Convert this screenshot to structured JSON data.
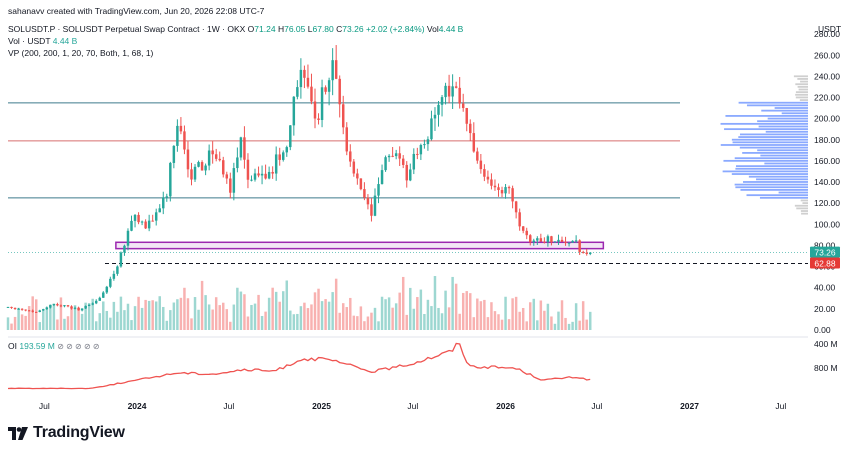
{
  "header": {
    "created_by": "sahanavv created with TradingView.com, Jun 20, 2026 22:08 UTC-7"
  },
  "legend": {
    "symbol": "SOLUSDT.P · SOLUSDT Perpetual Swap Contract · 1W · OKX",
    "open_label": "O",
    "open": "71.24",
    "high_label": "H",
    "high": "76.05",
    "low_label": "L",
    "low": "67.80",
    "close_label": "C",
    "close": "73.26",
    "change": "+2.02 (+2.84%)",
    "vol_label": "Vol",
    "vol": "4.44 B",
    "volume_label": "Vol · USDT",
    "volume_value": "4.44 B",
    "vp_label": "VP (200, 200, 1, 20, 70, Both, 1, 68, 1)",
    "oi_label": "OI",
    "oi_value": "193.59 M",
    "oi_icons": "⊘ ⊘ ⊘ ⊘ ⊘"
  },
  "price_axis": {
    "currency": "USDT",
    "current_price": "73.26",
    "support_price": "62.88",
    "colors": {
      "current": "#26a69a",
      "support": "#e53935"
    }
  },
  "oi_axis": {
    "labels": [
      "800 M",
      "400 M"
    ]
  },
  "brand": {
    "name": "TradingView",
    "icon": "tradingview-logo-icon"
  },
  "chart_data": {
    "type": "candlestick",
    "symbol": "SOLUSDT.P",
    "interval": "1W",
    "ylim": [
      0,
      300
    ],
    "y_ticks": [
      0,
      20,
      40,
      60,
      80,
      100,
      120,
      140,
      160,
      180,
      200,
      220,
      240,
      260,
      280
    ],
    "y_tick_labels": [
      "0.00",
      "20.00",
      "40.00",
      "60.00",
      "80.00",
      "100.00",
      "120.00",
      "140.00",
      "160.00",
      "180.00",
      "200.00",
      "220.00",
      "240.00",
      "260.00",
      "280.00"
    ],
    "x_ticks": [
      "Jul",
      "2024",
      "Jul",
      "2025",
      "Jul",
      "2026",
      "Jul",
      "2027",
      "Jul"
    ],
    "x_tick_dates": [
      "2023-07-01",
      "2024-01-01",
      "2024-07-01",
      "2025-01-01",
      "2025-07-01",
      "2026-01-01",
      "2026-07-01",
      "2027-01-01",
      "2027-07-01"
    ],
    "x_range": [
      "2023-04-20",
      "2027-08-20"
    ],
    "horizontal_levels": [
      {
        "price": 215,
        "color": "#3d7a8c"
      },
      {
        "price": 179,
        "color": "#d86f6f"
      },
      {
        "price": 125,
        "color": "#3d7a8c"
      },
      {
        "price": 62.88,
        "style": "dashed",
        "color": "#131722"
      }
    ],
    "support_zone": {
      "low": 77,
      "high": 83,
      "from": "2023-11-20",
      "to": "2026-07-14",
      "color": "#9c27b0"
    },
    "key_points": [
      {
        "date": "2023-04-20",
        "close": 22
      },
      {
        "date": "2023-06-15",
        "close": 17
      },
      {
        "date": "2023-07-20",
        "close": 25
      },
      {
        "date": "2023-09-10",
        "close": 19
      },
      {
        "date": "2023-10-20",
        "close": 30
      },
      {
        "date": "2023-11-20",
        "close": 58
      },
      {
        "date": "2023-12-25",
        "close": 110
      },
      {
        "date": "2024-01-20",
        "close": 95
      },
      {
        "date": "2024-03-01",
        "close": 130
      },
      {
        "date": "2024-03-20",
        "close": 200
      },
      {
        "date": "2024-04-15",
        "close": 145
      },
      {
        "date": "2024-06-01",
        "close": 170
      },
      {
        "date": "2024-07-05",
        "close": 135
      },
      {
        "date": "2024-07-25",
        "close": 180
      },
      {
        "date": "2024-08-10",
        "close": 140
      },
      {
        "date": "2024-09-20",
        "close": 150
      },
      {
        "date": "2024-10-25",
        "close": 175
      },
      {
        "date": "2024-11-20",
        "close": 250
      },
      {
        "date": "2024-12-20",
        "close": 195
      },
      {
        "date": "2025-01-20",
        "close": 255
      },
      {
        "date": "2025-02-20",
        "close": 170
      },
      {
        "date": "2025-03-20",
        "close": 130
      },
      {
        "date": "2025-04-10",
        "close": 110
      },
      {
        "date": "2025-05-15",
        "close": 170
      },
      {
        "date": "2025-06-20",
        "close": 145
      },
      {
        "date": "2025-07-20",
        "close": 180
      },
      {
        "date": "2025-08-20",
        "close": 205
      },
      {
        "date": "2025-09-15",
        "close": 235
      },
      {
        "date": "2025-10-15",
        "close": 195
      },
      {
        "date": "2025-11-10",
        "close": 160
      },
      {
        "date": "2025-12-05",
        "close": 130
      },
      {
        "date": "2026-01-10",
        "close": 135
      },
      {
        "date": "2026-01-30",
        "close": 100
      },
      {
        "date": "2026-02-20",
        "close": 85
      },
      {
        "date": "2026-04-01",
        "close": 86
      },
      {
        "date": "2026-05-20",
        "close": 82
      },
      {
        "date": "2026-06-08",
        "close": 68
      },
      {
        "date": "2026-06-22",
        "close": 73.26
      }
    ],
    "open_interest": {
      "unit": "USD",
      "ylim": [
        0,
        900000000
      ],
      "ticks": [
        400000000,
        800000000
      ],
      "key_points": [
        {
          "date": "2023-04-20",
          "value": 60000000
        },
        {
          "date": "2023-10-01",
          "value": 60000000
        },
        {
          "date": "2023-12-20",
          "value": 180000000
        },
        {
          "date": "2024-03-20",
          "value": 320000000
        },
        {
          "date": "2024-06-01",
          "value": 300000000
        },
        {
          "date": "2024-08-01",
          "value": 370000000
        },
        {
          "date": "2024-10-01",
          "value": 350000000
        },
        {
          "date": "2024-11-25",
          "value": 560000000
        },
        {
          "date": "2025-01-20",
          "value": 530000000
        },
        {
          "date": "2025-04-10",
          "value": 340000000
        },
        {
          "date": "2025-06-15",
          "value": 440000000
        },
        {
          "date": "2025-08-15",
          "value": 600000000
        },
        {
          "date": "2025-09-15",
          "value": 680000000
        },
        {
          "date": "2025-10-01",
          "value": 830000000
        },
        {
          "date": "2025-10-20",
          "value": 430000000
        },
        {
          "date": "2026-01-20",
          "value": 400000000
        },
        {
          "date": "2026-03-15",
          "value": 200000000
        },
        {
          "date": "2026-05-20",
          "value": 250000000
        },
        {
          "date": "2026-06-22",
          "value": 193590000
        }
      ]
    }
  }
}
